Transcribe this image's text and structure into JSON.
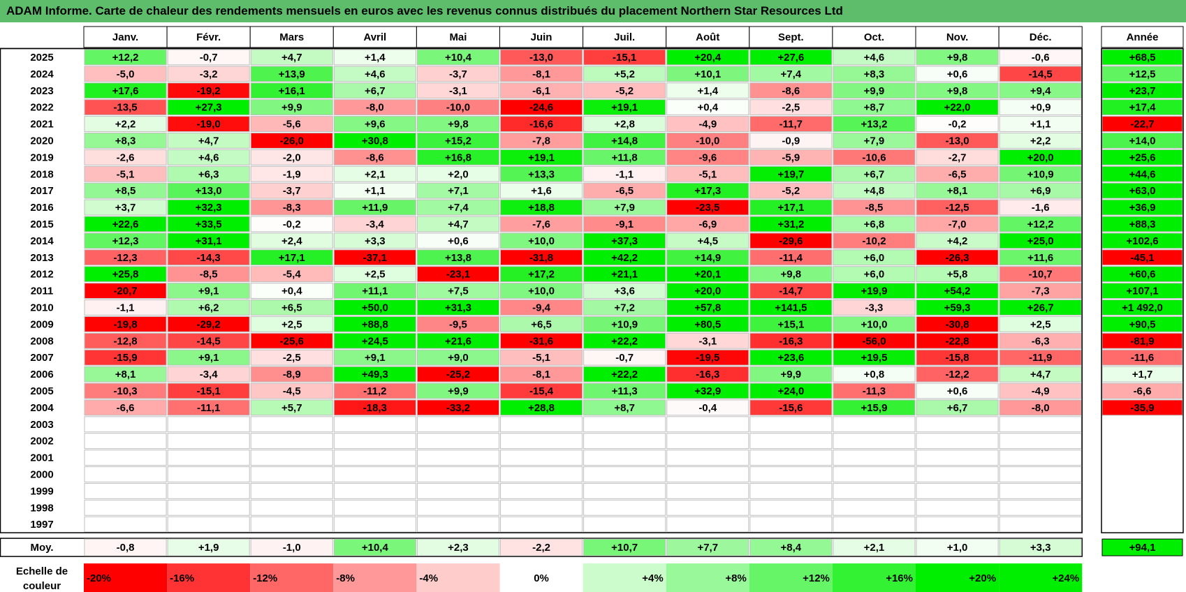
{
  "title": "ADAM Informe. Carte de chaleur des rendements mensuels en euros avec les revenus connus distribués du placement Northern Star Resources Ltd",
  "chart_data": {
    "type": "heatmap",
    "months": [
      "Janv.",
      "Févr.",
      "Mars",
      "Avril",
      "Mai",
      "Juin",
      "Juil.",
      "Août",
      "Sept.",
      "Oct.",
      "Nov.",
      "Déc."
    ],
    "year_header": "Année",
    "years": [
      "2025",
      "2024",
      "2023",
      "2022",
      "2021",
      "2020",
      "2019",
      "2018",
      "2017",
      "2016",
      "2015",
      "2014",
      "2013",
      "2012",
      "2011",
      "2010",
      "2009",
      "2008",
      "2007",
      "2006",
      "2005",
      "2004",
      "2003",
      "2002",
      "2001",
      "2000",
      "1999",
      "1998",
      "1997"
    ],
    "values": [
      [
        "+12,2",
        "-0,7",
        "+4,7",
        "+1,4",
        "+10,4",
        "-13,0",
        "-15,1",
        "+20,4",
        "+27,6",
        "+4,6",
        "+9,8",
        "-0,6"
      ],
      [
        "-5,0",
        "-3,2",
        "+13,9",
        "+4,6",
        "-3,7",
        "-8,1",
        "+5,2",
        "+10,1",
        "+7,4",
        "+8,3",
        "+0,6",
        "-14,5"
      ],
      [
        "+17,6",
        "-19,2",
        "+16,1",
        "+6,7",
        "-3,1",
        "-6,1",
        "-5,2",
        "+1,4",
        "-8,6",
        "+9,9",
        "+9,8",
        "+9,4"
      ],
      [
        "-13,5",
        "+27,3",
        "+9,9",
        "-8,0",
        "-10,0",
        "-24,6",
        "+19,1",
        "+0,4",
        "-2,5",
        "+8,7",
        "+22,0",
        "+0,9"
      ],
      [
        "+2,2",
        "-19,0",
        "-5,6",
        "+9,6",
        "+9,8",
        "-16,6",
        "+2,8",
        "-4,9",
        "-11,7",
        "+13,2",
        "-0,2",
        "+1,1"
      ],
      [
        "+8,3",
        "+4,7",
        "-26,0",
        "+30,8",
        "+15,2",
        "-7,8",
        "+14,8",
        "-10,0",
        "-0,9",
        "+7,9",
        "-13,0",
        "+2,2"
      ],
      [
        "-2,6",
        "+4,6",
        "-2,0",
        "-8,6",
        "+16,8",
        "+19,1",
        "+11,8",
        "-9,6",
        "-5,9",
        "-10,6",
        "-2,7",
        "+20,0"
      ],
      [
        "-5,1",
        "+6,3",
        "-1,9",
        "+2,1",
        "+2,0",
        "+13,3",
        "-1,1",
        "-5,1",
        "+19,7",
        "+6,7",
        "-6,5",
        "+10,9"
      ],
      [
        "+8,5",
        "+13,0",
        "-3,7",
        "+1,1",
        "+7,1",
        "+1,6",
        "-6,5",
        "+17,3",
        "-5,2",
        "+4,8",
        "+8,1",
        "+6,9"
      ],
      [
        "+3,7",
        "+32,3",
        "-8,3",
        "+11,9",
        "+7,4",
        "+18,8",
        "+7,9",
        "-23,5",
        "+17,1",
        "-8,5",
        "-12,5",
        "-1,6"
      ],
      [
        "+22,6",
        "+33,5",
        "-0,2",
        "-3,4",
        "+4,7",
        "-7,6",
        "-9,1",
        "-6,9",
        "+31,2",
        "+6,8",
        "-7,0",
        "+12,2"
      ],
      [
        "+12,3",
        "+31,1",
        "+2,4",
        "+3,3",
        "+0,6",
        "+10,0",
        "+37,3",
        "+4,5",
        "-29,6",
        "-10,2",
        "+4,2",
        "+25,0"
      ],
      [
        "-12,3",
        "-14,3",
        "+17,1",
        "-37,1",
        "+13,8",
        "-31,8",
        "+42,2",
        "+14,9",
        "-11,4",
        "+6,0",
        "-26,3",
        "+11,6"
      ],
      [
        "+25,8",
        "-8,5",
        "-5,4",
        "+2,5",
        "-23,1",
        "+17,2",
        "+21,1",
        "+20,1",
        "+9,8",
        "+6,0",
        "+5,8",
        "-10,7"
      ],
      [
        "-20,7",
        "+9,1",
        "+0,4",
        "+11,1",
        "+7,5",
        "+10,0",
        "+3,6",
        "+20,0",
        "-14,7",
        "+19,9",
        "+54,2",
        "-7,3"
      ],
      [
        "-1,1",
        "+6,2",
        "+6,5",
        "+50,0",
        "+31,3",
        "-9,4",
        "+7,2",
        "+57,8",
        "+141,5",
        "-3,3",
        "+59,3",
        "+26,7"
      ],
      [
        "-19,8",
        "-29,2",
        "+2,5",
        "+88,8",
        "-9,5",
        "+6,5",
        "+10,9",
        "+80,5",
        "+15,1",
        "+10,0",
        "-30,8",
        "+2,5"
      ],
      [
        "-12,8",
        "-14,5",
        "-25,6",
        "+24,5",
        "+21,6",
        "-31,6",
        "+22,2",
        "-3,1",
        "-16,3",
        "-56,0",
        "-22,8",
        "-6,3"
      ],
      [
        "-15,9",
        "+9,1",
        "-2,5",
        "+9,1",
        "+9,0",
        "-5,1",
        "-0,7",
        "-19,5",
        "+23,6",
        "+19,5",
        "-15,8",
        "-11,9"
      ],
      [
        "+8,1",
        "-3,4",
        "-8,9",
        "+49,3",
        "-25,2",
        "-8,1",
        "+22,2",
        "-16,3",
        "+9,9",
        "+0,8",
        "-12,2",
        "+4,7"
      ],
      [
        "-10,3",
        "-15,1",
        "-4,5",
        "-11,2",
        "+9,9",
        "-15,4",
        "+11,3",
        "+32,9",
        "+24,0",
        "-11,3",
        "+0,6",
        "-4,9"
      ],
      [
        "-6,6",
        "-11,1",
        "+5,7",
        "-18,3",
        "-33,2",
        "+28,8",
        "+8,7",
        "-0,4",
        "-15,6",
        "+15,9",
        "+6,7",
        "-8,0"
      ],
      [
        "",
        "",
        "",
        "",
        "",
        "",
        "",
        "",
        "",
        "",
        "",
        ""
      ],
      [
        "",
        "",
        "",
        "",
        "",
        "",
        "",
        "",
        "",
        "",
        "",
        ""
      ],
      [
        "",
        "",
        "",
        "",
        "",
        "",
        "",
        "",
        "",
        "",
        "",
        ""
      ],
      [
        "",
        "",
        "",
        "",
        "",
        "",
        "",
        "",
        "",
        "",
        "",
        ""
      ],
      [
        "",
        "",
        "",
        "",
        "",
        "",
        "",
        "",
        "",
        "",
        "",
        ""
      ],
      [
        "",
        "",
        "",
        "",
        "",
        "",
        "",
        "",
        "",
        "",
        "",
        ""
      ],
      [
        "",
        "",
        "",
        "",
        "",
        "",
        "",
        "",
        "",
        "",
        "",
        ""
      ]
    ],
    "annual": [
      "+68,5",
      "+12,5",
      "+23,7",
      "+17,4",
      "-22,7",
      "+14,0",
      "+25,6",
      "+44,6",
      "+63,0",
      "+36,9",
      "+88,3",
      "+102,6",
      "-45,1",
      "+60,6",
      "+107,1",
      "+1 492,0",
      "+90,5",
      "-81,9",
      "-11,6",
      "+1,7",
      "-6,6",
      "-35,9",
      "",
      "",
      "",
      "",
      "",
      "",
      ""
    ],
    "average_label": "Moy.",
    "averages": [
      "-0,8",
      "+1,9",
      "-1,0",
      "+10,4",
      "+2,3",
      "-2,2",
      "+10,7",
      "+7,7",
      "+8,4",
      "+2,1",
      "+1,0",
      "+3,3"
    ],
    "average_annual": "+94,1",
    "scale_label_line1": "Echelle de",
    "scale_label_line2": "couleur",
    "scale": [
      "-20%",
      "-16%",
      "-12%",
      "-8%",
      "-4%",
      "0%",
      "+4%",
      "+8%",
      "+12%",
      "+16%",
      "+20%",
      "+24%"
    ],
    "scale_values": [
      -20,
      -16,
      -12,
      -8,
      -4,
      0,
      4,
      8,
      12,
      16,
      20,
      24
    ],
    "colors": {
      "negative": "#ff0000",
      "neutral": "#ffffff",
      "positive": "#00ee00",
      "title_bar": "#5ebd6b"
    }
  }
}
